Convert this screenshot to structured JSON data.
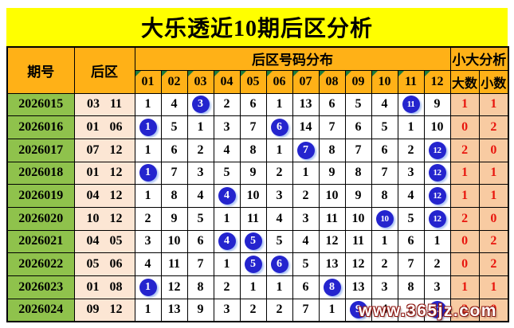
{
  "title": "大乐透近10期后区分析",
  "watermark": "www.365jz.com",
  "colors": {
    "title_bg": "#FFFF00",
    "header_bg": "#FFB117",
    "period_bg": "#8FC24C",
    "rear_bg": "#FCE6D4",
    "count_bg": "#F8CBA2",
    "count_text": "#E8150D",
    "ball": "#2424CE",
    "ball_shadow": "#AFC6F5",
    "triangle": "#1E7B3C",
    "border": "#000000"
  },
  "table": {
    "headers": {
      "period": "期号",
      "rear": "后区",
      "distribution": "后区号码分布",
      "analysis": "小大分析",
      "numbers": [
        "01",
        "02",
        "03",
        "04",
        "05",
        "06",
        "07",
        "08",
        "09",
        "10",
        "11",
        "12"
      ],
      "big": "大数",
      "small": "小数"
    },
    "rows": [
      {
        "period": "2026015",
        "rear": "03 11",
        "cells": [
          {
            "v": "1"
          },
          {
            "v": "4"
          },
          {
            "v": "3",
            "hit": true
          },
          {
            "v": "2"
          },
          {
            "v": "6"
          },
          {
            "v": "1"
          },
          {
            "v": "13"
          },
          {
            "v": "6"
          },
          {
            "v": "5"
          },
          {
            "v": "4"
          },
          {
            "v": "11",
            "hit": true
          },
          {
            "v": "9"
          }
        ],
        "big": "1",
        "small": "1"
      },
      {
        "period": "2026016",
        "rear": "01 06",
        "cells": [
          {
            "v": "1",
            "hit": true
          },
          {
            "v": "5"
          },
          {
            "v": "1"
          },
          {
            "v": "3"
          },
          {
            "v": "7"
          },
          {
            "v": "6",
            "hit": true
          },
          {
            "v": "14"
          },
          {
            "v": "7"
          },
          {
            "v": "6"
          },
          {
            "v": "5"
          },
          {
            "v": "1"
          },
          {
            "v": "10"
          }
        ],
        "big": "0",
        "small": "2"
      },
      {
        "period": "2026017",
        "rear": "07 12",
        "cells": [
          {
            "v": "1"
          },
          {
            "v": "6"
          },
          {
            "v": "2"
          },
          {
            "v": "4"
          },
          {
            "v": "8"
          },
          {
            "v": "1"
          },
          {
            "v": "7",
            "hit": true
          },
          {
            "v": "8"
          },
          {
            "v": "7"
          },
          {
            "v": "6"
          },
          {
            "v": "2"
          },
          {
            "v": "12",
            "hit": true
          }
        ],
        "big": "2",
        "small": "0"
      },
      {
        "period": "2026018",
        "rear": "01 12",
        "cells": [
          {
            "v": "1",
            "hit": true
          },
          {
            "v": "7"
          },
          {
            "v": "3"
          },
          {
            "v": "5"
          },
          {
            "v": "9"
          },
          {
            "v": "2"
          },
          {
            "v": "1"
          },
          {
            "v": "9"
          },
          {
            "v": "8"
          },
          {
            "v": "7"
          },
          {
            "v": "3"
          },
          {
            "v": "12",
            "hit": true
          }
        ],
        "big": "1",
        "small": "1"
      },
      {
        "period": "2026019",
        "rear": "04 12",
        "cells": [
          {
            "v": "1"
          },
          {
            "v": "8"
          },
          {
            "v": "4"
          },
          {
            "v": "4",
            "hit": true
          },
          {
            "v": "10"
          },
          {
            "v": "3"
          },
          {
            "v": "2"
          },
          {
            "v": "10"
          },
          {
            "v": "9"
          },
          {
            "v": "8"
          },
          {
            "v": "4"
          },
          {
            "v": "12",
            "hit": true
          }
        ],
        "big": "1",
        "small": "1"
      },
      {
        "period": "2026020",
        "rear": "10 12",
        "cells": [
          {
            "v": "2"
          },
          {
            "v": "9"
          },
          {
            "v": "5"
          },
          {
            "v": "1"
          },
          {
            "v": "11"
          },
          {
            "v": "4"
          },
          {
            "v": "3"
          },
          {
            "v": "11"
          },
          {
            "v": "10"
          },
          {
            "v": "10",
            "hit": true
          },
          {
            "v": "5"
          },
          {
            "v": "12",
            "hit": true
          }
        ],
        "big": "2",
        "small": "0"
      },
      {
        "period": "2026021",
        "rear": "04 05",
        "cells": [
          {
            "v": "3"
          },
          {
            "v": "10"
          },
          {
            "v": "6"
          },
          {
            "v": "4",
            "hit": true
          },
          {
            "v": "5",
            "hit": true
          },
          {
            "v": "5"
          },
          {
            "v": "4"
          },
          {
            "v": "12"
          },
          {
            "v": "11"
          },
          {
            "v": "1"
          },
          {
            "v": "6"
          },
          {
            "v": "1"
          }
        ],
        "big": "0",
        "small": "2"
      },
      {
        "period": "2026022",
        "rear": "05 06",
        "cells": [
          {
            "v": "4"
          },
          {
            "v": "11"
          },
          {
            "v": "7"
          },
          {
            "v": "1"
          },
          {
            "v": "5",
            "hit": true
          },
          {
            "v": "6",
            "hit": true
          },
          {
            "v": "5"
          },
          {
            "v": "13"
          },
          {
            "v": "12"
          },
          {
            "v": "2"
          },
          {
            "v": "7"
          },
          {
            "v": "2"
          }
        ],
        "big": "0",
        "small": "2"
      },
      {
        "period": "2026023",
        "rear": "01 08",
        "cells": [
          {
            "v": "1",
            "hit": true
          },
          {
            "v": "12"
          },
          {
            "v": "8"
          },
          {
            "v": "2"
          },
          {
            "v": "1"
          },
          {
            "v": "1"
          },
          {
            "v": "6"
          },
          {
            "v": "8",
            "hit": true
          },
          {
            "v": "13"
          },
          {
            "v": "3"
          },
          {
            "v": "8"
          },
          {
            "v": "3"
          }
        ],
        "big": "1",
        "small": "1"
      },
      {
        "period": "2026024",
        "rear": "09 12",
        "cells": [
          {
            "v": "1"
          },
          {
            "v": "13"
          },
          {
            "v": "9"
          },
          {
            "v": "3"
          },
          {
            "v": "2"
          },
          {
            "v": "2"
          },
          {
            "v": "7"
          },
          {
            "v": "1"
          },
          {
            "v": "9",
            "hit": true
          },
          {
            "v": "4"
          },
          {
            "v": "9"
          },
          {
            "v": "12",
            "hit": true
          }
        ],
        "big": "2",
        "small": "0"
      }
    ]
  },
  "chart_data": {
    "type": "table",
    "title": "大乐透近10期后区分析",
    "columns": [
      "期号",
      "后区",
      "01",
      "02",
      "03",
      "04",
      "05",
      "06",
      "07",
      "08",
      "09",
      "10",
      "11",
      "12",
      "大数",
      "小数"
    ],
    "rows": [
      [
        "2026015",
        "03 11",
        1,
        4,
        3,
        2,
        6,
        1,
        13,
        6,
        5,
        4,
        11,
        9,
        1,
        1
      ],
      [
        "2026016",
        "01 06",
        1,
        5,
        1,
        3,
        7,
        6,
        14,
        7,
        6,
        5,
        1,
        10,
        0,
        2
      ],
      [
        "2026017",
        "07 12",
        1,
        6,
        2,
        4,
        8,
        1,
        7,
        8,
        7,
        6,
        2,
        12,
        2,
        0
      ],
      [
        "2026018",
        "01 12",
        1,
        7,
        3,
        5,
        9,
        2,
        1,
        9,
        8,
        7,
        3,
        12,
        1,
        1
      ],
      [
        "2026019",
        "04 12",
        1,
        8,
        4,
        4,
        10,
        3,
        2,
        10,
        9,
        8,
        4,
        12,
        1,
        1
      ],
      [
        "2026020",
        "10 12",
        2,
        9,
        5,
        1,
        11,
        4,
        3,
        11,
        10,
        10,
        5,
        12,
        2,
        0
      ],
      [
        "2026021",
        "04 05",
        3,
        10,
        6,
        4,
        5,
        5,
        4,
        12,
        11,
        1,
        6,
        1,
        0,
        2
      ],
      [
        "2026022",
        "05 06",
        4,
        11,
        7,
        1,
        5,
        6,
        5,
        13,
        12,
        2,
        7,
        2,
        0,
        2
      ],
      [
        "2026023",
        "01 08",
        1,
        12,
        8,
        2,
        1,
        1,
        6,
        8,
        13,
        3,
        8,
        3,
        1,
        1
      ],
      [
        "2026024",
        "09 12",
        1,
        13,
        9,
        3,
        2,
        2,
        7,
        1,
        9,
        4,
        9,
        12,
        2,
        0
      ]
    ],
    "highlight_rule": "cells in the two columns matching each row's 后区 numbers are drawn as blue circled balls"
  }
}
